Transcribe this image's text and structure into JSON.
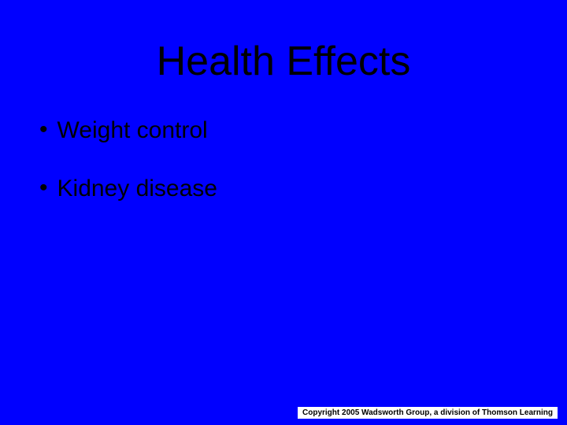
{
  "slide": {
    "title": "Health Effects",
    "bullets": [
      {
        "text": "Weight control"
      },
      {
        "text": "Kidney disease"
      }
    ],
    "copyright": "Copyright 2005 Wadsworth Group, a division of Thomson Learning"
  },
  "styling": {
    "background_color": "#0000ff",
    "text_color": "#000000",
    "title_fontsize": 52,
    "bullet_fontsize": 30,
    "copyright_fontsize": 10,
    "copyright_bg": "#ffffff",
    "font_family": "Verdana"
  }
}
